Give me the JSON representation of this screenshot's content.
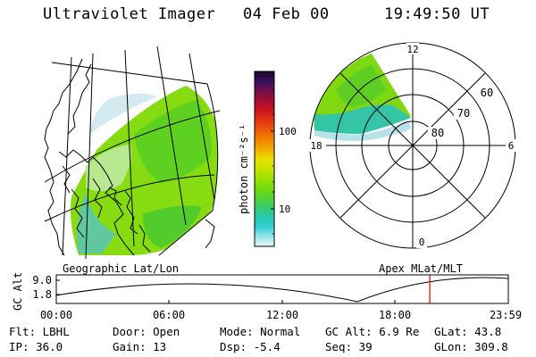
{
  "header": {
    "instrument": "Ultraviolet Imager",
    "date": "04 Feb 00",
    "time": "19:49:50 UT"
  },
  "colorbar": {
    "unit_label": "photon cm⁻²s⁻¹",
    "ticks": [
      "100",
      "10"
    ],
    "colors": [
      "#1a0a28",
      "#3a1060",
      "#8c0e3e",
      "#cc1020",
      "#e84010",
      "#f07c00",
      "#f4b000",
      "#e8e000",
      "#c4e400",
      "#8ee000",
      "#5ed81c",
      "#3ccc60",
      "#28c8b4",
      "#30d0d4",
      "#90e4e8",
      "#e6f6f8"
    ]
  },
  "polar_plot": {
    "mlt_labels": {
      "top": "12",
      "left": "18",
      "right": "6",
      "bottom": "0"
    },
    "lat_labels": [
      "60",
      "70",
      "80"
    ]
  },
  "footer_labels": {
    "left": "Geographic Lat/Lon",
    "right": "Apex MLat/MLT"
  },
  "orbit": {
    "axis_label": "GC Alt",
    "y_ticks": [
      "9.0",
      "1.8"
    ],
    "time_ticks": [
      "00:00",
      "06:00",
      "12:00",
      "18:00",
      "23:59"
    ],
    "current_time_hours": 19.83,
    "marker_color": "#cc0000"
  },
  "params": {
    "row1": [
      "Flt: LBHL",
      "Door: Open",
      "Mode: Normal",
      "GC Alt: 6.9 Re",
      "GLat:  43.8"
    ],
    "row2": [
      "IP: 36.0",
      "Gain: 13",
      "Dsp:   -5.4",
      "Seq: 39",
      "GLon: 309.8"
    ]
  }
}
